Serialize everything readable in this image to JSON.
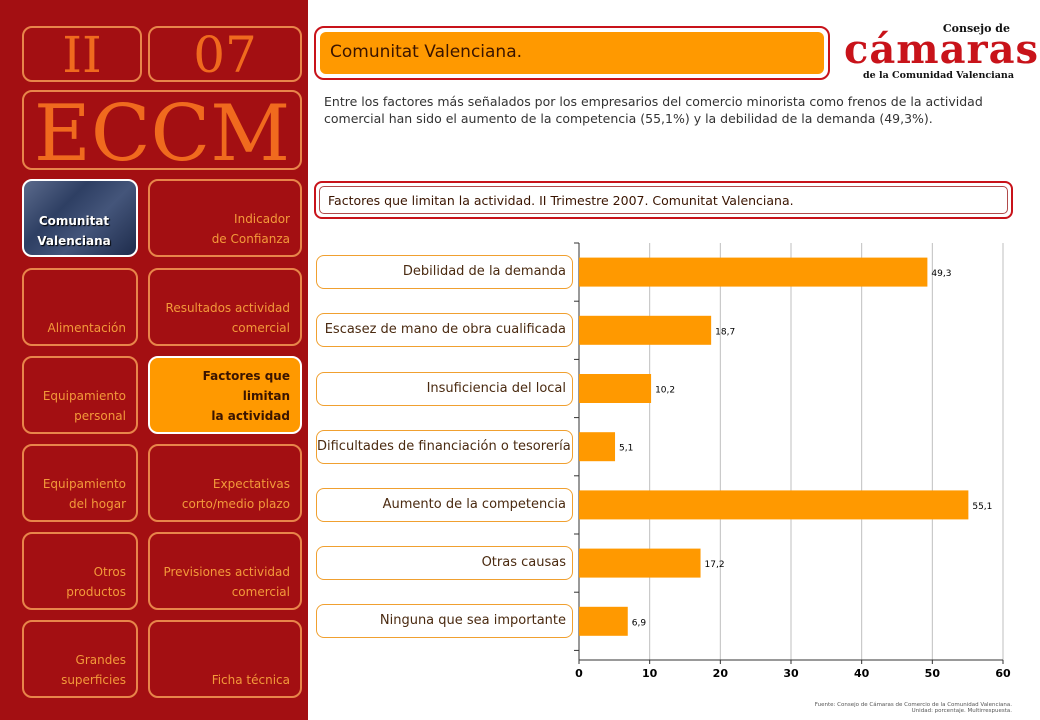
{
  "sidebar": {
    "section": "II",
    "issue": "07",
    "acronym": "ECCM",
    "items": [
      {
        "label": "Comunitat\nValenciana"
      },
      {
        "label": "Indicador\nde Confianza"
      },
      {
        "label": "Alimentación"
      },
      {
        "label": "Resultados actividad\ncomercial"
      },
      {
        "label": "Equipamiento\npersonal"
      },
      {
        "label": "Factores que limitan\nla actividad"
      },
      {
        "label": "Equipamiento\ndel hogar"
      },
      {
        "label": "Expectativas\ncorto/medio plazo"
      },
      {
        "label": "Otros\nproductos"
      },
      {
        "label": "Previsiones actividad\ncomercial"
      },
      {
        "label": "Grandes\nsuperficies"
      },
      {
        "label": "Ficha técnica"
      }
    ]
  },
  "header": {
    "title": "Comunitat Valenciana.",
    "logo_top": "Consejo de",
    "logo_main": "cámaras",
    "logo_bottom": "de la Comunidad Valenciana"
  },
  "intro": "Entre los factores más señalados por los empresarios del comercio minorista como frenos de la actividad comercial han sido el aumento de la competencia (55,1%) y la debilidad de la demanda (49,3%).",
  "chart_title": "Factores que limitan la actividad. II Trimestre 2007. Comunitat Valenciana.",
  "footer": {
    "line1": "Fuente: Consejo de Cámaras de Comercio de la Comunidad Valenciana.",
    "line2": "Unidad: porcentaje. Multirrespuesta."
  },
  "colors": {
    "sidebar": "#a30f12",
    "accent": "#ff9900",
    "big_text": "#f06a1e"
  },
  "chart_data": {
    "type": "bar",
    "orientation": "horizontal",
    "categories": [
      "Debilidad de la demanda",
      "Escasez de mano de obra cualificada",
      "Insuficiencia del local",
      "Dificultades de financiación o tesorería",
      "Aumento de la competencia",
      "Otras causas",
      "Ninguna que sea importante"
    ],
    "values": [
      49.3,
      18.7,
      10.2,
      5.1,
      55.1,
      17.2,
      6.9
    ],
    "value_labels": [
      "49,3",
      "18,7",
      "10,2",
      "5,1",
      "55,1",
      "17,2",
      "6,9"
    ],
    "xlim": [
      0,
      60
    ],
    "xticks": [
      0,
      10,
      20,
      30,
      40,
      50,
      60
    ],
    "grid": true,
    "bar_color": "#ff9900"
  }
}
